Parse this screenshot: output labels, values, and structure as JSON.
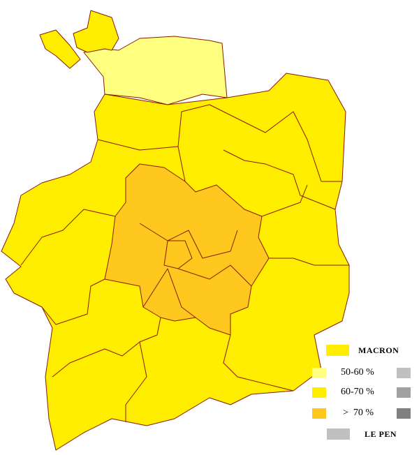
{
  "colors": {
    "macron_50_60": "#FFFF80",
    "macron_60_70": "#FFEE00",
    "macron_over_70": "#FFC81E",
    "lepen_50_60": "#C0C0C0",
    "lepen_60_70": "#A0A0A0",
    "lepen_over_70": "#808080",
    "border": "#8B1A00"
  },
  "legend": {
    "macron_label": "MACRON",
    "lepen_label": "LE PEN",
    "ranges": [
      "50-60 %",
      "60-70 %",
      ">  70 %"
    ]
  }
}
